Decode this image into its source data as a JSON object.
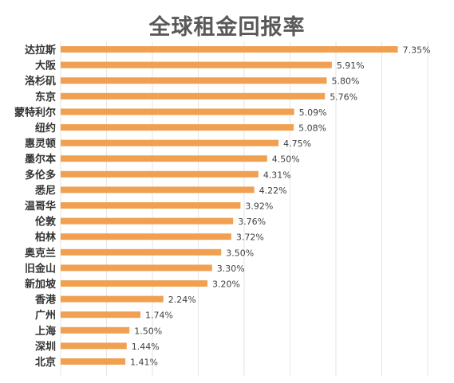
{
  "chart_data": {
    "type": "bar",
    "orientation": "horizontal",
    "title": "全球租金回报率",
    "categories": [
      "达拉斯",
      "大阪",
      "洛杉矶",
      "东京",
      "蒙特利尔",
      "纽约",
      "惠灵顿",
      "墨尔本",
      "多伦多",
      "悉尼",
      "温哥华",
      "伦敦",
      "柏林",
      "奥克兰",
      "旧金山",
      "新加坡",
      "香港",
      "广州",
      "上海",
      "深圳",
      "北京"
    ],
    "values": [
      7.35,
      5.91,
      5.8,
      5.76,
      5.09,
      5.08,
      4.75,
      4.5,
      4.31,
      4.22,
      3.92,
      3.76,
      3.72,
      3.5,
      3.3,
      3.2,
      2.24,
      1.74,
      1.5,
      1.44,
      1.41
    ],
    "data_labels": [
      "7.35%",
      "5.91%",
      "5.80%",
      "5.76%",
      "5.09%",
      "5.08%",
      "4.75%",
      "4.50%",
      "4.31%",
      "4.22%",
      "3.92%",
      "3.76%",
      "3.72%",
      "3.50%",
      "3.30%",
      "3.20%",
      "2.24%",
      "1.74%",
      "1.50%",
      "1.44%",
      "1.41%"
    ],
    "xlim": [
      0,
      8
    ],
    "grid": true,
    "legend": "none",
    "bar_color": "#f0a050",
    "grid_color": "#e6e6e6"
  }
}
